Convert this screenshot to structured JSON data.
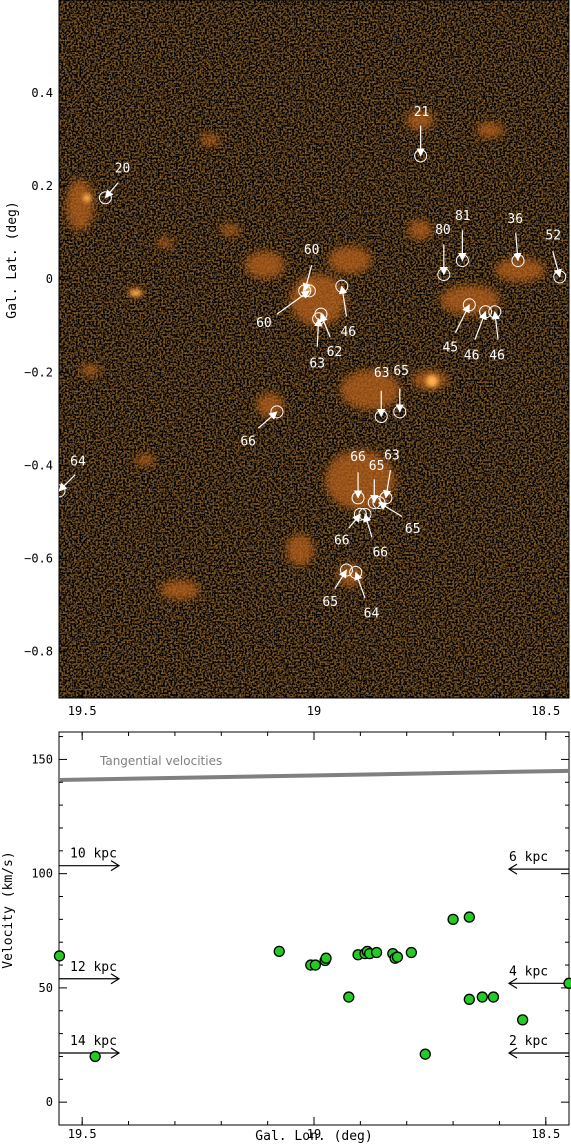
{
  "chart_data": [
    {
      "type": "scatter",
      "panel": "map",
      "xlabel": "",
      "ylabel": "Gal. Lat. (deg)",
      "xlim": [
        19.55,
        18.45
      ],
      "ylim": [
        -0.9,
        0.6
      ],
      "x_ticks": [
        19.5,
        19,
        18.5
      ],
      "x_tick_labels": [
        "19.5",
        "19",
        "18.5"
      ],
      "y_ticks": [
        0.4,
        0.2,
        0,
        -0.2,
        -0.4,
        -0.6,
        -0.8
      ],
      "y_tick_labels": [
        "0.4",
        "0.2",
        "0",
        "−0.2",
        "−0.4",
        "−0.6",
        "−0.8"
      ],
      "colors": {
        "background": "#0a0603",
        "emission": "#e8871e",
        "markers": "#ffffff"
      },
      "sources": [
        {
          "l": 19.45,
          "b": 0.175,
          "label": "20",
          "label_l": 19.413,
          "label_b": 0.237,
          "arrow_from_l": 19.423,
          "arrow_from_b": 0.207
        },
        {
          "l": 18.77,
          "b": 0.265,
          "label": "21",
          "label_l": 18.768,
          "label_b": 0.358,
          "arrow_from_l": 18.77,
          "arrow_from_b": 0.33
        },
        {
          "l": 18.72,
          "b": 0.01,
          "label": "80",
          "label_l": 18.722,
          "label_b": 0.105,
          "arrow_from_l": 18.72,
          "arrow_from_b": 0.075
        },
        {
          "l": 18.68,
          "b": 0.04,
          "label": "81",
          "label_l": 18.679,
          "label_b": 0.135,
          "arrow_from_l": 18.68,
          "arrow_from_b": 0.105
        },
        {
          "l": 18.56,
          "b": 0.04,
          "label": "36",
          "label_l": 18.566,
          "label_b": 0.128,
          "arrow_from_l": 18.565,
          "arrow_from_b": 0.1
        },
        {
          "l": 18.47,
          "b": 0.005,
          "label": "52",
          "label_l": 18.484,
          "label_b": 0.093,
          "arrow_from_l": 18.485,
          "arrow_from_b": 0.06
        },
        {
          "l": 19.02,
          "b": -0.025,
          "label": "60",
          "label_l": 19.005,
          "label_b": 0.062,
          "arrow_from_l": 19.005,
          "arrow_from_b": 0.03
        },
        {
          "l": 19.01,
          "b": -0.025,
          "label": "60",
          "label_l": 19.108,
          "label_b": -0.095,
          "arrow_from_l": 19.08,
          "arrow_from_b": -0.075
        },
        {
          "l": 18.94,
          "b": -0.015,
          "label": "46",
          "label_l": 18.926,
          "label_b": -0.115,
          "arrow_from_l": 18.93,
          "arrow_from_b": -0.08
        },
        {
          "l": 18.99,
          "b": -0.085,
          "label": "63",
          "label_l": 18.993,
          "label_b": -0.182,
          "arrow_from_l": 18.993,
          "arrow_from_b": -0.145
        },
        {
          "l": 18.985,
          "b": -0.075,
          "label": "62",
          "label_l": 18.956,
          "label_b": -0.158,
          "arrow_from_l": 18.965,
          "arrow_from_b": -0.125
        },
        {
          "l": 18.665,
          "b": -0.055,
          "label": "45",
          "label_l": 18.706,
          "label_b": -0.148,
          "arrow_from_l": 18.695,
          "arrow_from_b": -0.115
        },
        {
          "l": 18.63,
          "b": -0.07,
          "label": "46",
          "label_l": 18.66,
          "label_b": -0.165,
          "arrow_from_l": 18.653,
          "arrow_from_b": -0.13
        },
        {
          "l": 18.61,
          "b": -0.07,
          "label": "46",
          "label_l": 18.605,
          "label_b": -0.165,
          "arrow_from_l": 18.603,
          "arrow_from_b": -0.13
        },
        {
          "l": 18.855,
          "b": -0.295,
          "label": "63",
          "label_l": 18.854,
          "label_b": -0.203,
          "arrow_from_l": 18.855,
          "arrow_from_b": -0.24
        },
        {
          "l": 18.815,
          "b": -0.285,
          "label": "65",
          "label_l": 18.812,
          "label_b": -0.198,
          "arrow_from_l": 18.815,
          "arrow_from_b": -0.235
        },
        {
          "l": 19.08,
          "b": -0.285,
          "label": "66",
          "label_l": 19.142,
          "label_b": -0.35,
          "arrow_from_l": 19.12,
          "arrow_from_b": -0.32
        },
        {
          "l": 19.55,
          "b": -0.455,
          "label": "64",
          "label_l": 19.509,
          "label_b": -0.393,
          "arrow_from_l": 19.515,
          "arrow_from_b": -0.42
        },
        {
          "l": 18.905,
          "b": -0.47,
          "label": "66",
          "label_l": 18.905,
          "label_b": -0.383,
          "arrow_from_l": 18.905,
          "arrow_from_b": -0.415
        },
        {
          "l": 18.87,
          "b": -0.48,
          "label": "65",
          "label_l": 18.865,
          "label_b": -0.403,
          "arrow_from_l": 18.87,
          "arrow_from_b": -0.43
        },
        {
          "l": 18.845,
          "b": -0.47,
          "label": "63",
          "label_l": 18.832,
          "label_b": -0.38,
          "arrow_from_l": 18.835,
          "arrow_from_b": -0.41
        },
        {
          "l": 18.86,
          "b": -0.48,
          "label": "65",
          "label_l": 18.787,
          "label_b": -0.538,
          "arrow_from_l": 18.81,
          "arrow_from_b": -0.51
        },
        {
          "l": 18.9,
          "b": -0.505,
          "label": "66",
          "label_l": 18.94,
          "label_b": -0.563,
          "arrow_from_l": 18.925,
          "arrow_from_b": -0.535
        },
        {
          "l": 18.89,
          "b": -0.505,
          "label": "66",
          "label_l": 18.857,
          "label_b": -0.588,
          "arrow_from_l": 18.875,
          "arrow_from_b": -0.555
        },
        {
          "l": 18.93,
          "b": -0.625,
          "label": "65",
          "label_l": 18.965,
          "label_b": -0.695,
          "arrow_from_l": 18.955,
          "arrow_from_b": -0.665
        },
        {
          "l": 18.91,
          "b": -0.63,
          "label": "64",
          "label_l": 18.876,
          "label_b": -0.72,
          "arrow_from_l": 18.89,
          "arrow_from_b": -0.685
        }
      ]
    },
    {
      "type": "scatter",
      "panel": "velocity",
      "xlabel": "Gal. Lon. (deg)",
      "ylabel": "Velocity (km/s)",
      "xlim": [
        19.55,
        18.45
      ],
      "ylim": [
        -10,
        162
      ],
      "x_ticks": [
        19.5,
        19,
        18.5
      ],
      "x_tick_labels": [
        "19.5",
        "19",
        "18.5"
      ],
      "y_ticks": [
        0,
        50,
        100,
        150
      ],
      "y_tick_labels": [
        "0",
        "50",
        "100",
        "150"
      ],
      "marker_color": "#22cc22",
      "tangent_line": {
        "label": "Tangential velocities",
        "l": [
          19.55,
          18.45
        ],
        "v": [
          141,
          145
        ],
        "color": "#808080"
      },
      "distance_markers": [
        {
          "label": "10 kpc",
          "v": 103.5,
          "side": "left"
        },
        {
          "label": "12 kpc",
          "v": 54,
          "side": "left"
        },
        {
          "label": "14 kpc",
          "v": 21.5,
          "side": "left"
        },
        {
          "label": "6 kpc",
          "v": 102,
          "side": "right"
        },
        {
          "label": "4 kpc",
          "v": 52,
          "side": "right"
        },
        {
          "label": "2 kpc",
          "v": 21.5,
          "side": "right"
        }
      ],
      "points": [
        {
          "l": 19.549,
          "v": 64
        },
        {
          "l": 19.472,
          "v": 20
        },
        {
          "l": 19.075,
          "v": 66
        },
        {
          "l": 19.007,
          "v": 60
        },
        {
          "l": 18.997,
          "v": 60
        },
        {
          "l": 18.976,
          "v": 62
        },
        {
          "l": 18.974,
          "v": 63
        },
        {
          "l": 18.925,
          "v": 46
        },
        {
          "l": 18.905,
          "v": 64.5
        },
        {
          "l": 18.89,
          "v": 65
        },
        {
          "l": 18.885,
          "v": 66
        },
        {
          "l": 18.88,
          "v": 65
        },
        {
          "l": 18.865,
          "v": 65.5
        },
        {
          "l": 18.83,
          "v": 65
        },
        {
          "l": 18.825,
          "v": 63
        },
        {
          "l": 18.82,
          "v": 63.5
        },
        {
          "l": 18.79,
          "v": 65.5
        },
        {
          "l": 18.76,
          "v": 21
        },
        {
          "l": 18.7,
          "v": 80
        },
        {
          "l": 18.665,
          "v": 81
        },
        {
          "l": 18.665,
          "v": 45
        },
        {
          "l": 18.637,
          "v": 46
        },
        {
          "l": 18.613,
          "v": 46
        },
        {
          "l": 18.55,
          "v": 36
        },
        {
          "l": 18.45,
          "v": 52
        }
      ]
    }
  ]
}
